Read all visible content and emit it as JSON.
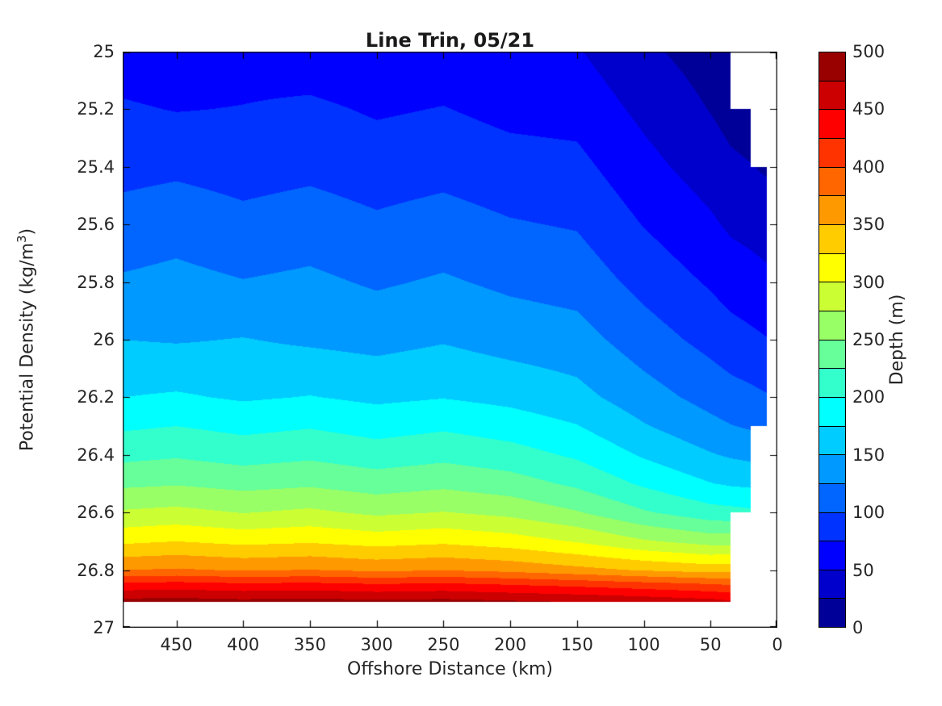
{
  "chart_data": {
    "type": "filled_contour",
    "title": "Line Trin, 05/21",
    "xlabel": "Offshore Distance (km)",
    "ylabel": "Potential Density (kg/m^3)",
    "ylabel_parts": {
      "pre": "Potential Density (kg/m",
      "sup": "3",
      "post": ")"
    },
    "x_axis": {
      "lim": [
        490.2,
        0
      ],
      "reversed": true,
      "tick_values": [
        450,
        400,
        350,
        300,
        250,
        200,
        150,
        100,
        50,
        0
      ],
      "tick_labels": [
        "450",
        "400",
        "350",
        "300",
        "250",
        "200",
        "150",
        "100",
        "50",
        "0"
      ]
    },
    "y_axis": {
      "lim": [
        25,
        27
      ],
      "reversed": true,
      "tick_values": [
        25,
        25.2,
        25.4,
        25.6,
        25.8,
        26,
        26.2,
        26.4,
        26.6,
        26.8,
        27
      ],
      "tick_labels": [
        "25",
        "25.2",
        "25.4",
        "25.6",
        "25.8",
        "26",
        "26.2",
        "26.4",
        "26.6",
        "26.8",
        "27"
      ]
    },
    "colorbar": {
      "label": "Depth (m)",
      "tick_values": [
        0,
        50,
        100,
        150,
        200,
        250,
        300,
        350,
        400,
        450,
        500
      ],
      "tick_labels": [
        "0",
        "50",
        "100",
        "150",
        "200",
        "250",
        "300",
        "350",
        "400",
        "450",
        "500"
      ],
      "levels": [
        0,
        25,
        50,
        75,
        100,
        125,
        150,
        175,
        200,
        225,
        250,
        275,
        300,
        325,
        350,
        375,
        400,
        425,
        450,
        475,
        500
      ],
      "colors": [
        "#000099",
        "#0000CC",
        "#0000FF",
        "#0033FF",
        "#0066FF",
        "#0099FF",
        "#00CCFF",
        "#00FFFF",
        "#33FFCC",
        "#66FF99",
        "#99FF66",
        "#CCFF33",
        "#FFFF00",
        "#FFCC00",
        "#FF9900",
        "#FF6600",
        "#FF3300",
        "#FF0000",
        "#CC0000",
        "#990000"
      ]
    },
    "grid": {
      "comment": "depth_m[row][col]: isopycnal depth (m) at each density (row) and offshore distance (col); null = no data (white)",
      "distances_km": [
        490,
        450,
        400,
        350,
        300,
        250,
        200,
        150,
        100,
        50,
        35,
        20,
        8
      ],
      "densities": [
        25.0,
        25.2,
        25.4,
        25.6,
        25.8,
        26.0,
        26.2,
        26.3,
        26.4,
        26.5,
        26.6,
        26.7,
        26.8,
        26.85,
        26.91
      ],
      "depth_m": [
        [
          62,
          58,
          64,
          60,
          55,
          60,
          56,
          52,
          30,
          14,
          8,
          null,
          null
        ],
        [
          78,
          74,
          76,
          80,
          72,
          76,
          68,
          66,
          44,
          24,
          16,
          12,
          null
        ],
        [
          92,
          95,
          90,
          94,
          88,
          92,
          85,
          82,
          58,
          38,
          30,
          26,
          22
        ],
        [
          110,
          115,
          107,
          112,
          104,
          110,
          102,
          98,
          74,
          54,
          46,
          42,
          38
        ],
        [
          128,
          132,
          126,
          130,
          122,
          128,
          120,
          115,
          92,
          72,
          64,
          60,
          56
        ],
        [
          150,
          148,
          151,
          146,
          142,
          148,
          140,
          135,
          112,
          92,
          85,
          80,
          76
        ],
        [
          175,
          178,
          172,
          176,
          170,
          174,
          168,
          158,
          136,
          116,
          110,
          106,
          102
        ],
        [
          196,
          200,
          193,
          198,
          190,
          196,
          188,
          176,
          152,
          132,
          126,
          122,
          118
        ],
        [
          218,
          222,
          215,
          220,
          212,
          218,
          210,
          196,
          172,
          152,
          147,
          144,
          null
        ],
        [
          245,
          248,
          242,
          246,
          238,
          244,
          236,
          220,
          196,
          176,
          172,
          170,
          null
        ],
        [
          278,
          282,
          274,
          280,
          270,
          276,
          268,
          252,
          228,
          210,
          208,
          205,
          null
        ],
        [
          320,
          325,
          318,
          322,
          315,
          320,
          312,
          298,
          278,
          265,
          265,
          null,
          null
        ],
        [
          375,
          378,
          373,
          376,
          370,
          374,
          368,
          358,
          348,
          340,
          342,
          null,
          null
        ],
        [
          432,
          435,
          430,
          432,
          427,
          430,
          424,
          418,
          410,
          402,
          398,
          null,
          null
        ],
        [
          485,
          487,
          483,
          486,
          481,
          484,
          479,
          474,
          468,
          460,
          455,
          null,
          null
        ]
      ]
    }
  }
}
